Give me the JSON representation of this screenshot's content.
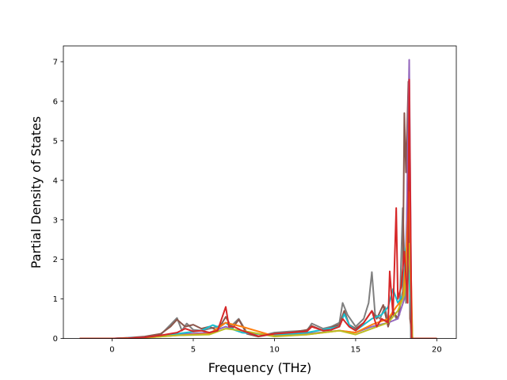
{
  "chart_data": {
    "type": "line",
    "title": "",
    "xlabel": "Frequency (THz)",
    "ylabel": "Partial Density of States",
    "xlim": [
      -3.0,
      21.2
    ],
    "ylim": [
      0,
      7.4
    ],
    "xticks": [
      0,
      5,
      10,
      15,
      20
    ],
    "yticks": [
      0,
      1,
      2,
      3,
      4,
      5,
      6,
      7
    ],
    "xtick_labels": [
      "0",
      "5",
      "10",
      "15",
      "20"
    ],
    "ytick_labels": [
      "0",
      "1",
      "2",
      "3",
      "4",
      "5",
      "6",
      "7"
    ],
    "grid": false,
    "legend": "none",
    "series": [
      {
        "color": "#7f7f7f",
        "x": [
          -2.0,
          0.0,
          1.0,
          2.0,
          3.0,
          3.6,
          4.0,
          4.3,
          4.6,
          5.0,
          5.5,
          6.0,
          6.5,
          7.0,
          7.3,
          7.8,
          8.3,
          9.0,
          10.0,
          11.0,
          12.0,
          12.3,
          13.0,
          13.5,
          14.0,
          14.2,
          14.5,
          15.0,
          15.5,
          15.8,
          16.0,
          16.2,
          16.5,
          16.8,
          17.0,
          17.3,
          17.5,
          17.7,
          17.9,
          18.1,
          18.25,
          18.4,
          18.6,
          20.0
        ],
        "y": [
          0.0,
          0.0,
          0.01,
          0.04,
          0.1,
          0.35,
          0.52,
          0.2,
          0.38,
          0.22,
          0.2,
          0.25,
          0.3,
          0.4,
          0.3,
          0.5,
          0.15,
          0.05,
          0.15,
          0.18,
          0.2,
          0.38,
          0.25,
          0.3,
          0.4,
          0.9,
          0.6,
          0.3,
          0.5,
          0.9,
          1.68,
          0.6,
          0.5,
          0.8,
          0.4,
          0.7,
          0.5,
          0.6,
          3.3,
          0.9,
          6.3,
          0.0,
          0.0,
          0.0
        ]
      },
      {
        "color": "#8c564b",
        "x": [
          -2.0,
          0.0,
          1.0,
          2.0,
          3.0,
          3.6,
          4.0,
          4.5,
          5.0,
          5.5,
          6.0,
          6.5,
          7.0,
          7.4,
          7.8,
          8.3,
          9.0,
          10.0,
          11.0,
          12.0,
          12.3,
          13.0,
          13.5,
          14.0,
          14.3,
          14.6,
          15.0,
          15.5,
          16.0,
          16.3,
          16.7,
          17.0,
          17.3,
          17.6,
          17.9,
          18.0,
          18.1,
          18.25,
          18.35,
          18.5,
          20.0
        ],
        "y": [
          0.0,
          0.0,
          0.02,
          0.05,
          0.12,
          0.3,
          0.48,
          0.3,
          0.35,
          0.25,
          0.3,
          0.2,
          0.55,
          0.25,
          0.48,
          0.12,
          0.05,
          0.12,
          0.15,
          0.22,
          0.32,
          0.2,
          0.28,
          0.35,
          0.7,
          0.35,
          0.25,
          0.4,
          0.7,
          0.5,
          0.85,
          0.3,
          0.7,
          0.5,
          1.2,
          5.7,
          4.2,
          6.5,
          0.5,
          0.0,
          0.0
        ]
      },
      {
        "color": "#9467bd",
        "x": [
          -2.0,
          0.0,
          2.0,
          4.0,
          6.0,
          7.0,
          8.0,
          10.0,
          12.0,
          14.0,
          15.0,
          16.0,
          17.0,
          17.6,
          18.0,
          18.15,
          18.3,
          18.45,
          20.0
        ],
        "y": [
          0.0,
          0.0,
          0.03,
          0.1,
          0.15,
          0.3,
          0.15,
          0.08,
          0.12,
          0.2,
          0.15,
          0.3,
          0.4,
          0.5,
          1.0,
          3.0,
          7.05,
          0.0,
          0.0
        ]
      },
      {
        "color": "#17becf",
        "x": [
          -2.0,
          0.0,
          2.0,
          4.0,
          5.5,
          6.2,
          6.6,
          7.0,
          7.5,
          8.0,
          10.0,
          12.0,
          14.0,
          14.3,
          14.6,
          15.0,
          16.0,
          16.6,
          17.0,
          17.3,
          17.6,
          17.9,
          18.1,
          18.3,
          18.5,
          20.0
        ],
        "y": [
          0.0,
          0.0,
          0.03,
          0.12,
          0.2,
          0.34,
          0.28,
          0.4,
          0.22,
          0.15,
          0.08,
          0.15,
          0.3,
          0.62,
          0.35,
          0.2,
          0.5,
          0.6,
          0.8,
          1.25,
          0.9,
          1.1,
          2.3,
          1.5,
          0.0,
          0.0
        ]
      },
      {
        "color": "#ff7f0e",
        "x": [
          -2.0,
          0.0,
          2.0,
          4.0,
          6.0,
          7.0,
          8.0,
          10.0,
          12.0,
          14.0,
          15.0,
          16.0,
          17.0,
          17.5,
          17.9,
          18.1,
          18.3,
          18.5,
          20.0
        ],
        "y": [
          0.0,
          0.0,
          0.02,
          0.08,
          0.12,
          0.4,
          0.3,
          0.06,
          0.1,
          0.2,
          0.15,
          0.35,
          0.5,
          0.8,
          1.0,
          2.0,
          3.7,
          0.0,
          0.0
        ]
      },
      {
        "color": "#bcbd22",
        "x": [
          -2.0,
          0.0,
          2.0,
          4.0,
          6.0,
          7.0,
          8.0,
          10.0,
          12.0,
          14.0,
          15.0,
          16.0,
          17.0,
          17.6,
          18.0,
          18.3,
          18.5,
          20.0
        ],
        "y": [
          0.0,
          0.0,
          0.02,
          0.08,
          0.1,
          0.25,
          0.2,
          0.05,
          0.1,
          0.2,
          0.1,
          0.25,
          0.4,
          0.7,
          1.1,
          2.4,
          0.0,
          0.0
        ]
      },
      {
        "color": "#d62728",
        "x": [
          -2.0,
          0.0,
          1.0,
          2.0,
          3.0,
          4.0,
          4.5,
          5.0,
          5.5,
          6.0,
          6.5,
          7.0,
          7.2,
          7.5,
          8.0,
          9.0,
          10.0,
          11.0,
          12.0,
          12.3,
          13.0,
          13.5,
          14.0,
          14.2,
          14.6,
          15.0,
          15.5,
          16.0,
          16.3,
          16.6,
          17.0,
          17.1,
          17.3,
          17.5,
          17.6,
          17.8,
          18.0,
          18.2,
          18.3,
          18.45,
          20.0
        ],
        "y": [
          0.0,
          0.0,
          0.01,
          0.03,
          0.08,
          0.15,
          0.25,
          0.18,
          0.2,
          0.15,
          0.2,
          0.8,
          0.3,
          0.3,
          0.2,
          0.06,
          0.12,
          0.15,
          0.18,
          0.3,
          0.2,
          0.22,
          0.3,
          0.5,
          0.3,
          0.2,
          0.4,
          0.7,
          0.3,
          0.5,
          0.4,
          1.7,
          0.6,
          3.3,
          1.0,
          1.3,
          2.2,
          0.9,
          6.55,
          0.0,
          0.0
        ]
      }
    ]
  }
}
